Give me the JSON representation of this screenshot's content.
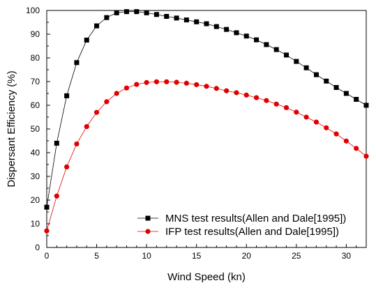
{
  "chart_data": {
    "type": "scatter",
    "xlabel": "Wind Speed (kn)",
    "ylabel": "Dispersant Efficiency (%)",
    "xlim": [
      0,
      32
    ],
    "ylim": [
      0,
      100
    ],
    "x_ticks": [
      "0",
      "5",
      "10",
      "15",
      "20",
      "25",
      "30"
    ],
    "y_ticks": [
      "0",
      "10",
      "20",
      "30",
      "40",
      "50",
      "60",
      "70",
      "80",
      "90",
      "100"
    ],
    "legend_position": "bottom-right",
    "grid": false,
    "series": [
      {
        "name": "MNS test results(Allen and Dale[1995])",
        "marker": "square",
        "color": "#000000",
        "x": [
          0,
          1,
          2,
          3,
          4,
          5,
          6,
          7,
          8,
          9,
          10,
          11,
          12,
          13,
          14,
          15,
          16,
          17,
          18,
          19,
          20,
          21,
          22,
          23,
          24,
          25,
          26,
          27,
          28,
          29,
          30,
          31,
          32
        ],
        "values": [
          17,
          44,
          64,
          78,
          87.5,
          93.5,
          97,
          99,
          99.5,
          99.5,
          99,
          98.3,
          97.5,
          96.8,
          96,
          95.2,
          94.4,
          93.2,
          92,
          90.6,
          89.2,
          87.6,
          85.6,
          83.5,
          81.2,
          78.5,
          75.8,
          72.9,
          70.2,
          67.5,
          65,
          62.5,
          60
        ]
      },
      {
        "name": "IFP test results(Allen and Dale[1995])",
        "marker": "circle",
        "color": "#e00000",
        "x": [
          0,
          1,
          2,
          3,
          4,
          5,
          6,
          7,
          8,
          9,
          10,
          11,
          12,
          13,
          14,
          15,
          16,
          17,
          18,
          19,
          20,
          21,
          22,
          23,
          24,
          25,
          26,
          27,
          28,
          29,
          30,
          31,
          32
        ],
        "values": [
          7,
          21.7,
          34,
          43.7,
          51,
          57,
          61.5,
          65,
          67.3,
          68.8,
          69.6,
          69.9,
          69.9,
          69.7,
          69.3,
          68.7,
          68,
          67.1,
          66.1,
          65.3,
          64.3,
          63.2,
          62,
          60.5,
          59,
          57.1,
          55,
          52.9,
          50.5,
          47.9,
          44.9,
          41.8,
          38.5
        ]
      }
    ]
  }
}
